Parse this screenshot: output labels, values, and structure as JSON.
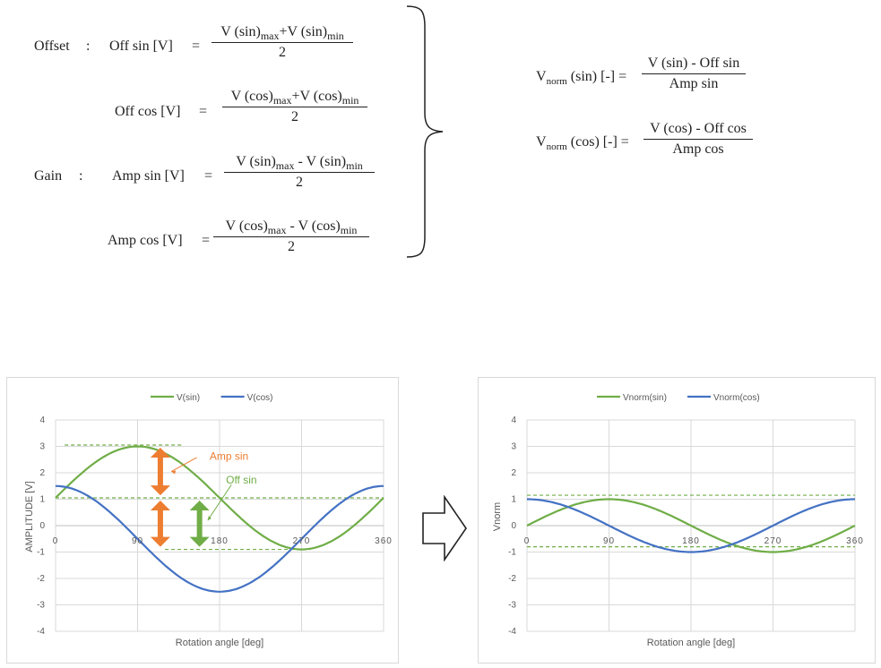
{
  "formulas": {
    "offset_label": "Offset",
    "offset_colon": ":",
    "off_sin_lhs": "Off sin [V]",
    "eq": "=",
    "off_sin_num": [
      "V (sin)",
      "max",
      "+V (sin)",
      "min"
    ],
    "off_cos_lhs": "Off cos [V]",
    "off_cos_num": [
      "V (cos)",
      "max",
      "+V (cos)",
      "min"
    ],
    "gain_label": "Gain",
    "gain_colon": ":",
    "amp_sin_lhs": "Amp sin [V]",
    "amp_sin_num": [
      "V (sin)",
      "max",
      " - V (sin)",
      "min"
    ],
    "amp_cos_lhs": "Amp cos [V]",
    "amp_cos_num": [
      "V (cos)",
      "max",
      " - V (cos)",
      "min"
    ],
    "den_two": "2",
    "vnorm_sin_lhs": [
      "V",
      "norm",
      " (sin) [-] ="
    ],
    "vnorm_sin_num": "V (sin) - Off sin",
    "vnorm_sin_den": "Amp sin",
    "vnorm_cos_lhs": [
      "V",
      "norm",
      " (cos) [-] ="
    ],
    "vnorm_cos_num": "V (cos) - Off cos",
    "vnorm_cos_den": "Amp cos"
  },
  "colors": {
    "sin": "#70ad47",
    "cos": "#4472c4",
    "amp_arrow": "#ed7d31",
    "off_arrow": "#70ad47",
    "axis_text": "#595959",
    "grid": "#d9d9d9",
    "right_arrow": "right-arrow-icon"
  },
  "chart_data": [
    {
      "type": "line",
      "legend": [
        "V(sin)",
        "V(cos)"
      ],
      "legend_position": "top",
      "xlabel": "Rotation angle [deg]",
      "ylabel": "AMPLITUDE [V]",
      "xlim": [
        0,
        360
      ],
      "ylim": [
        -4,
        4
      ],
      "xticks": [
        0,
        90,
        180,
        270,
        360
      ],
      "yticks": [
        4,
        3,
        2,
        1,
        0,
        -1,
        -2,
        -3,
        -4
      ],
      "grid": true,
      "series": [
        {
          "name": "V(sin)",
          "offset": 1.05,
          "amplitude": 1.95,
          "function": "sin"
        },
        {
          "name": "V(cos)",
          "offset": -0.5,
          "amplitude": 2.0,
          "function": "cos"
        }
      ],
      "reference_lines": [
        {
          "y": 3.05,
          "x_range": [
            10,
            140
          ]
        },
        {
          "y": 1.05,
          "x_range": [
            0,
            360
          ]
        },
        {
          "y": -0.9,
          "x_range": [
            120,
            280
          ]
        }
      ],
      "annotations": {
        "amp": "Amp sin",
        "off": "Off sin"
      }
    },
    {
      "type": "line",
      "legend": [
        "Vnorm(sin)",
        "Vnorm(cos)"
      ],
      "legend_position": "top",
      "xlabel": "Rotation angle [deg]",
      "ylabel": "Vnorm",
      "xlim": [
        0,
        360
      ],
      "ylim": [
        -4,
        4
      ],
      "xticks": [
        0,
        90,
        180,
        270,
        360
      ],
      "yticks": [
        4,
        3,
        2,
        1,
        0,
        -1,
        -2,
        -3,
        -4
      ],
      "grid": true,
      "series": [
        {
          "name": "Vnorm(sin)",
          "offset": 0,
          "amplitude": 1.0,
          "function": "sin"
        },
        {
          "name": "Vnorm(cos)",
          "offset": 0,
          "amplitude": 1.0,
          "function": "cos"
        }
      ],
      "reference_lines": [
        {
          "y": 1.15,
          "x_range": [
            0,
            360
          ]
        },
        {
          "y": -0.8,
          "x_range": [
            0,
            360
          ]
        }
      ]
    }
  ]
}
